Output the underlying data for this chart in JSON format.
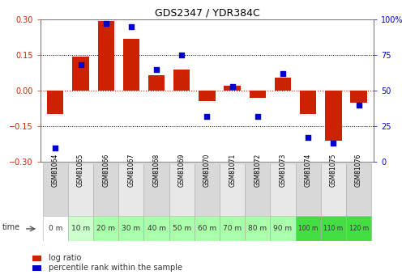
{
  "title": "GDS2347 / YDR384C",
  "samples": [
    "GSM81064",
    "GSM81065",
    "GSM81066",
    "GSM81067",
    "GSM81068",
    "GSM81069",
    "GSM81070",
    "GSM81071",
    "GSM81072",
    "GSM81073",
    "GSM81074",
    "GSM81075",
    "GSM81076"
  ],
  "time_labels": [
    "0 m",
    "10 m",
    "20 m",
    "30 m",
    "40 m",
    "50 m",
    "60 m",
    "70 m",
    "80 m",
    "90 m",
    "100 m",
    "110 m",
    "120 m"
  ],
  "log_ratio": [
    -0.1,
    0.145,
    0.295,
    0.22,
    0.065,
    0.09,
    -0.045,
    0.02,
    -0.03,
    0.055,
    -0.1,
    -0.21,
    -0.05
  ],
  "percentile": [
    10,
    68,
    97,
    95,
    65,
    75,
    32,
    53,
    32,
    62,
    17,
    13,
    40
  ],
  "bar_color": "#cc2200",
  "dot_color": "#0000cc",
  "bg_color": "#ffffff",
  "ylim": [
    -0.3,
    0.3
  ],
  "y2lim": [
    0,
    100
  ],
  "y_ticks": [
    -0.3,
    -0.15,
    0,
    0.15,
    0.3
  ],
  "y2_ticks": [
    0,
    25,
    50,
    75,
    100
  ],
  "hline_color": "#cc2200",
  "hline_dotted_color": "#000000",
  "time_bg_colors": [
    "#ffffff",
    "#ccffcc",
    "#aaffaa",
    "#aaffaa",
    "#aaffaa",
    "#aaffaa",
    "#aaffaa",
    "#aaffaa",
    "#aaffaa",
    "#aaffaa",
    "#44dd44",
    "#44dd44",
    "#44dd44"
  ],
  "label_log_ratio": "log ratio",
  "label_percentile": "percentile rank within the sample"
}
